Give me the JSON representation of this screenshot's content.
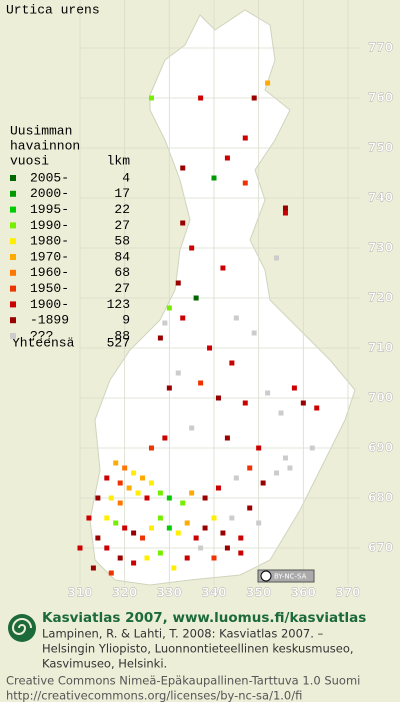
{
  "title": "Urtica urens",
  "legend": {
    "header": [
      "Uusimman",
      "havainnon",
      "vuosi"
    ],
    "count_header": "lkm",
    "items": [
      {
        "label": "2005-",
        "count": 4,
        "color": "#006600"
      },
      {
        "label": "2000-",
        "count": 17,
        "color": "#009900"
      },
      {
        "label": "1995-",
        "count": 22,
        "color": "#00cc00"
      },
      {
        "label": "1990-",
        "count": 27,
        "color": "#77ee00"
      },
      {
        "label": "1980-",
        "count": 58,
        "color": "#ffee00"
      },
      {
        "label": "1970-",
        "count": 84,
        "color": "#ffaa00"
      },
      {
        "label": "1960-",
        "count": 68,
        "color": "#ff7700"
      },
      {
        "label": "1950-",
        "count": 27,
        "color": "#ee3300"
      },
      {
        "label": "1900-",
        "count": 123,
        "color": "#cc0000"
      },
      {
        "label": "-1899",
        "count": 9,
        "color": "#990000"
      },
      {
        "label": "???",
        "count": 88,
        "color": "#cccccc"
      }
    ],
    "total_label": "Yhteensä",
    "total": 527
  },
  "map": {
    "xticks": [
      310,
      320,
      330,
      340,
      350,
      360,
      370
    ],
    "yticks": [
      670,
      680,
      690,
      700,
      710,
      720,
      730,
      740,
      750,
      760,
      770
    ],
    "cells": [
      [
        326,
        760,
        3
      ],
      [
        337,
        760,
        8
      ],
      [
        349,
        760,
        9
      ],
      [
        352,
        763,
        5
      ],
      [
        347,
        752,
        8
      ],
      [
        343,
        748,
        8
      ],
      [
        333,
        746,
        9
      ],
      [
        340,
        744,
        1
      ],
      [
        347,
        743,
        7
      ],
      [
        356,
        737,
        8
      ],
      [
        356,
        738,
        9
      ],
      [
        333,
        735,
        9
      ],
      [
        335,
        730,
        8
      ],
      [
        354,
        728,
        10
      ],
      [
        342,
        726,
        8
      ],
      [
        332,
        723,
        9
      ],
      [
        336,
        720,
        0
      ],
      [
        330,
        718,
        3
      ],
      [
        333,
        716,
        8
      ],
      [
        329,
        715,
        10
      ],
      [
        345,
        716,
        10
      ],
      [
        349,
        713,
        10
      ],
      [
        328,
        712,
        9
      ],
      [
        339,
        710,
        8
      ],
      [
        344,
        707,
        8
      ],
      [
        332,
        705,
        10
      ],
      [
        337,
        703,
        7
      ],
      [
        352,
        701,
        10
      ],
      [
        358,
        702,
        8
      ],
      [
        360,
        699,
        9
      ],
      [
        363,
        698,
        8
      ],
      [
        355,
        697,
        10
      ],
      [
        330,
        702,
        9
      ],
      [
        341,
        700,
        9
      ],
      [
        347,
        699,
        8
      ],
      [
        335,
        694,
        10
      ],
      [
        326,
        690,
        7
      ],
      [
        329,
        692,
        8
      ],
      [
        343,
        692,
        9
      ],
      [
        350,
        690,
        8
      ],
      [
        356,
        688,
        10
      ],
      [
        362,
        690,
        10
      ],
      [
        318,
        687,
        5
      ],
      [
        320,
        686,
        6
      ],
      [
        322,
        685,
        4
      ],
      [
        324,
        684,
        5
      ],
      [
        326,
        683,
        4
      ],
      [
        319,
        683,
        7
      ],
      [
        321,
        682,
        5
      ],
      [
        323,
        681,
        4
      ],
      [
        317,
        680,
        4
      ],
      [
        319,
        679,
        6
      ],
      [
        325,
        680,
        8
      ],
      [
        328,
        681,
        3
      ],
      [
        330,
        680,
        2
      ],
      [
        333,
        679,
        3
      ],
      [
        335,
        681,
        5
      ],
      [
        338,
        680,
        9
      ],
      [
        341,
        682,
        8
      ],
      [
        345,
        684,
        10
      ],
      [
        348,
        686,
        7
      ],
      [
        351,
        683,
        9
      ],
      [
        354,
        685,
        10
      ],
      [
        357,
        686,
        10
      ],
      [
        316,
        676,
        4
      ],
      [
        318,
        675,
        3
      ],
      [
        320,
        674,
        8
      ],
      [
        322,
        673,
        9
      ],
      [
        324,
        672,
        7
      ],
      [
        326,
        674,
        4
      ],
      [
        328,
        676,
        3
      ],
      [
        330,
        674,
        2
      ],
      [
        332,
        673,
        4
      ],
      [
        334,
        675,
        5
      ],
      [
        336,
        672,
        8
      ],
      [
        338,
        674,
        9
      ],
      [
        340,
        676,
        4
      ],
      [
        342,
        673,
        9
      ],
      [
        344,
        676,
        10
      ],
      [
        346,
        672,
        8
      ],
      [
        348,
        678,
        9
      ],
      [
        350,
        675,
        10
      ],
      [
        314,
        672,
        9
      ],
      [
        316,
        670,
        8
      ],
      [
        319,
        668,
        9
      ],
      [
        322,
        667,
        8
      ],
      [
        325,
        668,
        4
      ],
      [
        328,
        669,
        3
      ],
      [
        331,
        666,
        4
      ],
      [
        334,
        668,
        8
      ],
      [
        337,
        670,
        10
      ],
      [
        340,
        668,
        7
      ],
      [
        343,
        670,
        9
      ],
      [
        346,
        669,
        8
      ],
      [
        317,
        665,
        7
      ],
      [
        313,
        666,
        9
      ],
      [
        310,
        670,
        8
      ],
      [
        312,
        676,
        8
      ],
      [
        314,
        680,
        9
      ],
      [
        316,
        684,
        8
      ]
    ]
  },
  "badge": "BY-NC-SA",
  "footer": {
    "brand": "Kasviatlas 2007, www.luomus.fi/kasviatlas",
    "citation": [
      "Lampinen, R. & Lahti, T. 2008: Kasviatlas 2007. –",
      "Helsingin Yliopisto, Luonnontieteellinen keskusmuseo,",
      "Kasvimuseo, Helsinki."
    ],
    "license": [
      "Creative Commons Nimeä-Epäkaupallinen-Tarttuva 1.0 Suomi",
      "http://creativecommons.org/licenses/by-nc-sa/1.0/fi"
    ]
  }
}
